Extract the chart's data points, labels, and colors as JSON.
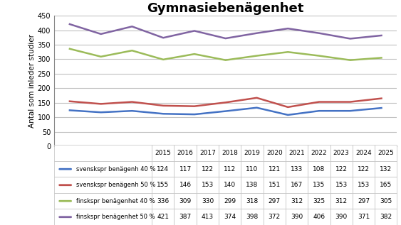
{
  "title": "Gymnasiebenägenhet",
  "ylabel": "Antal som inleder studier",
  "years": [
    2015,
    2016,
    2017,
    2018,
    2019,
    2020,
    2021,
    2022,
    2023,
    2024,
    2025
  ],
  "series": [
    {
      "label": "svenskspr benägenh 40 %",
      "values": [
        124,
        117,
        122,
        112,
        110,
        121,
        133,
        108,
        122,
        122,
        132
      ],
      "color": "#4472C4",
      "linewidth": 1.8
    },
    {
      "label": "svenskspr benägenh 50 %",
      "values": [
        155,
        146,
        153,
        140,
        138,
        151,
        167,
        135,
        153,
        153,
        165
      ],
      "color": "#C0504D",
      "linewidth": 1.8
    },
    {
      "label": "finskspr benägenhet 40 %",
      "values": [
        336,
        309,
        330,
        299,
        318,
        297,
        312,
        325,
        312,
        297,
        305
      ],
      "color": "#9BBB59",
      "linewidth": 1.8
    },
    {
      "label": "finskspr benägenhet 50 %",
      "values": [
        421,
        387,
        413,
        374,
        398,
        372,
        390,
        406,
        390,
        371,
        382
      ],
      "color": "#8064A2",
      "linewidth": 1.8
    }
  ],
  "ylim": [
    0,
    450
  ],
  "yticks": [
    0,
    50,
    100,
    150,
    200,
    250,
    300,
    350,
    400,
    450
  ],
  "background_color": "#FFFFFF",
  "grid_color": "#C0C0C0",
  "title_fontsize": 13,
  "axis_label_fontsize": 7.5,
  "tick_fontsize": 7,
  "table_rows": [
    [
      "124",
      "117",
      "122",
      "112",
      "110",
      "121",
      "133",
      "108",
      "122",
      "122",
      "132"
    ],
    [
      "155",
      "146",
      "153",
      "140",
      "138",
      "151",
      "167",
      "135",
      "153",
      "153",
      "165"
    ],
    [
      "336",
      "309",
      "330",
      "299",
      "318",
      "297",
      "312",
      "325",
      "312",
      "297",
      "305"
    ],
    [
      "421",
      "387",
      "413",
      "374",
      "398",
      "372",
      "390",
      "406",
      "390",
      "371",
      "382"
    ]
  ],
  "col_labels": [
    "2015",
    "2016",
    "2017",
    "2018",
    "2019",
    "2020",
    "2021",
    "2022",
    "2023",
    "2024",
    "2025"
  ]
}
